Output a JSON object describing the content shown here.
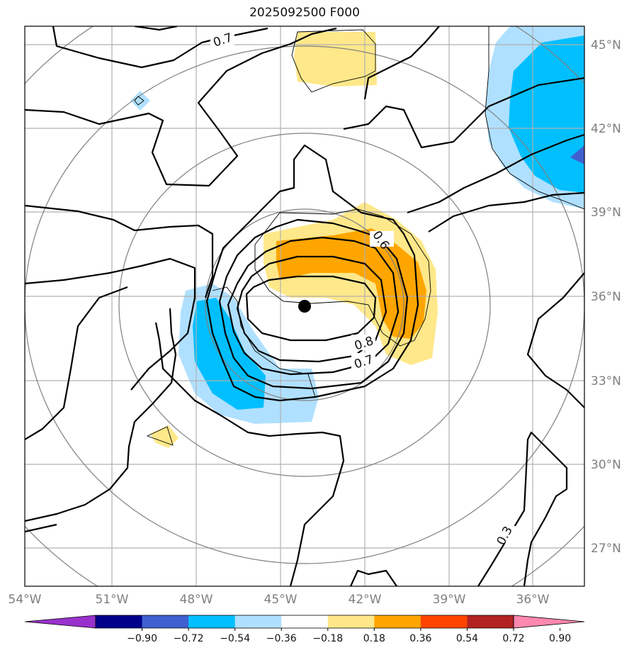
{
  "title": "2025092500 F000",
  "colors": {
    "light_yellow": "#ffe88a",
    "orange": "#ffa500",
    "light_blue": "#b0e0ff",
    "deep_sky_blue": "#00bfff",
    "royal_blue": "#4060d0",
    "contour": "#000000",
    "range_ring": "#808080",
    "grid": "#b0b0b0",
    "center_marker": "#000000"
  },
  "map": {
    "lon_labels": [
      "54°W",
      "51°W",
      "48°W",
      "45°W",
      "42°W",
      "39°W",
      "36°W"
    ],
    "lat_labels": [
      "45°N",
      "42°N",
      "39°N",
      "36°N",
      "33°N",
      "30°N",
      "27°N"
    ],
    "contour_labels": [
      "0.7",
      "0.6",
      "0.8",
      "0.7",
      "0.3"
    ],
    "center": {
      "lon": -44.3,
      "lat": 35.6
    }
  },
  "colorbar": {
    "colors": [
      "#9932cc",
      "#00008b",
      "#4060d0",
      "#00bfff",
      "#b0e0ff",
      "#ffffff",
      "#ffe88a",
      "#ffa500",
      "#ff4500",
      "#b22222",
      "#ff88b0"
    ],
    "ticks": [
      "−0.90",
      "−0.72",
      "−0.54",
      "−0.36",
      "−0.18",
      "0.18",
      "0.36",
      "0.54",
      "0.72",
      "0.90"
    ]
  }
}
